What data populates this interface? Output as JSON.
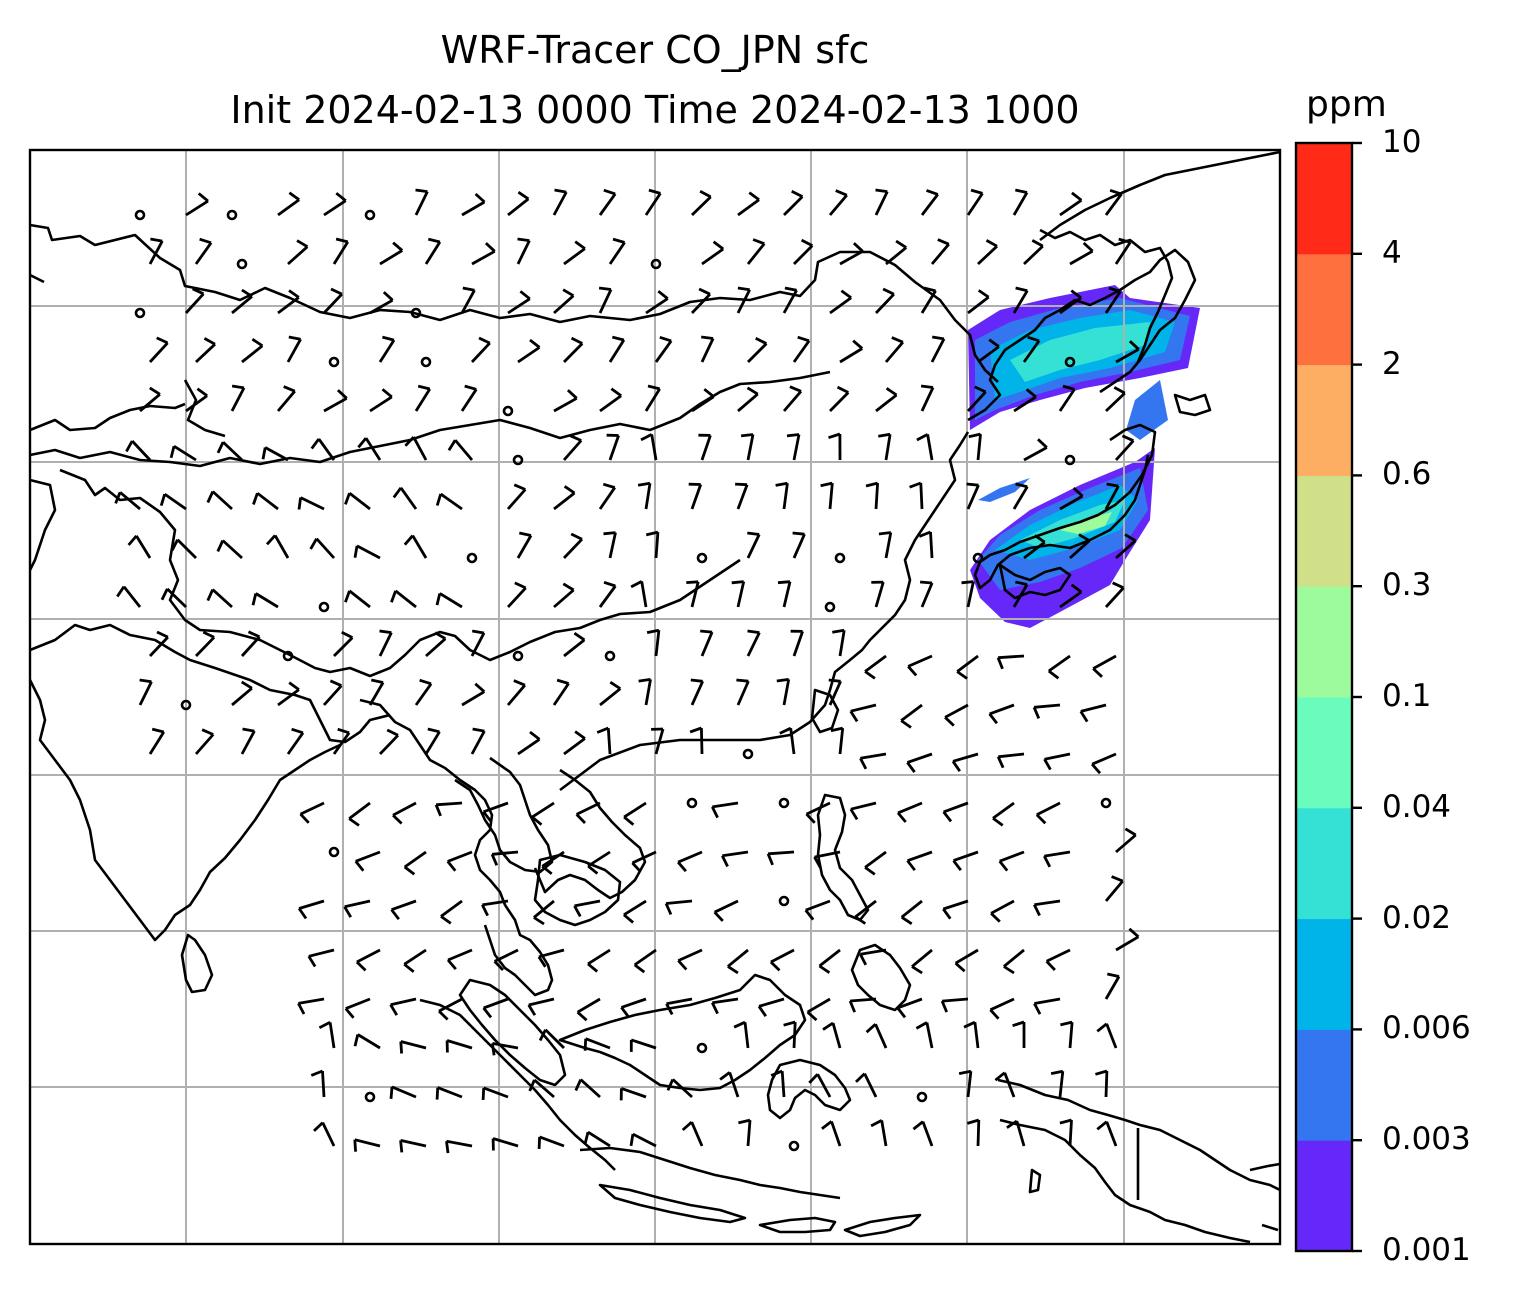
{
  "title": {
    "line1": "WRF-Tracer CO_JPN sfc",
    "line2": "Init 2024-02-13 0000 Time 2024-02-13 1000"
  },
  "colorbar": {
    "unit": "ppm",
    "levels": [
      "0.001",
      "0.003",
      "0.006",
      "0.02",
      "0.04",
      "0.1",
      "0.3",
      "0.6",
      "2",
      "4",
      "10"
    ],
    "colors": [
      "#6528f9",
      "#3475f0",
      "#00b4ea",
      "#35e0d4",
      "#69fcbd",
      "#9dfb9c",
      "#cfe088",
      "#feae63",
      "#ff703f",
      "#ff2a17"
    ]
  },
  "plume_colors": {
    "outer": "#6528f9",
    "mid": "#3475f0",
    "inner": "#00b4ea",
    "core": "#35e0d4",
    "peak": "#9dfb9c"
  }
}
